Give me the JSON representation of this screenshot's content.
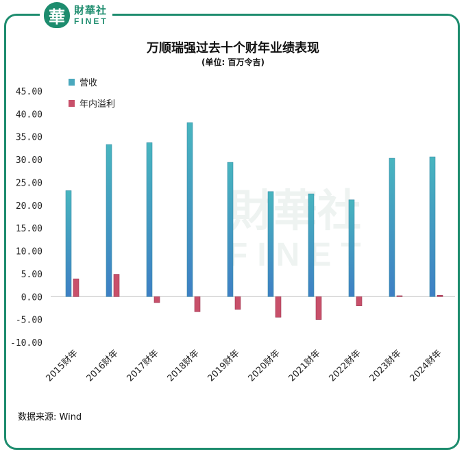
{
  "brand": {
    "logo_char": "華",
    "name_cn": "財華社",
    "name_en": "FINET"
  },
  "chart_data": {
    "type": "bar",
    "title": "万顺瑞强过去十个财年业绩表现",
    "subtitle": "(单位: 百万令吉)",
    "categories": [
      "2015财年",
      "2016财年",
      "2017财年",
      "2018财年",
      "2019财年",
      "2020财年",
      "2021财年",
      "2022财年",
      "2023财年",
      "2024财年"
    ],
    "series": [
      {
        "name": "营收",
        "color": "#4aa8bd",
        "values": [
          23.2,
          33.3,
          33.7,
          38.1,
          29.4,
          23.0,
          22.5,
          21.2,
          30.3,
          30.6
        ]
      },
      {
        "name": "年内溢利",
        "color": "#c8506a",
        "values": [
          3.9,
          4.9,
          -1.3,
          -3.3,
          -2.8,
          -4.5,
          -5.0,
          -2.0,
          0.2,
          0.3
        ]
      }
    ],
    "ylim": [
      -10,
      45
    ],
    "yticks": [
      "45.00",
      "40.00",
      "35.00",
      "30.00",
      "25.00",
      "20.00",
      "15.00",
      "10.00",
      "5.00",
      "0.00",
      "-5.00",
      "-10.00"
    ],
    "grid": false,
    "legend_position": "top-left"
  },
  "source_text": "数据来源: Wind"
}
